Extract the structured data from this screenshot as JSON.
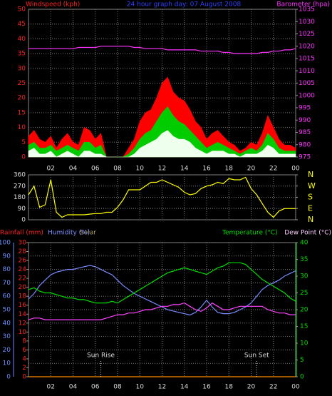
{
  "chart_data": [
    {
      "type": "line",
      "title": "24 hour graph day: 07 August 2008",
      "ylabel": "Windspeed (kph)",
      "y2label": "Barometer (hpa)",
      "x": [
        0,
        0.5,
        1,
        1.5,
        2,
        2.5,
        3,
        3.5,
        4,
        4.5,
        5,
        5.5,
        6,
        6.5,
        7,
        7.5,
        8,
        8.5,
        9,
        9.5,
        10,
        10.5,
        11,
        11.5,
        12,
        12.5,
        13,
        13.5,
        14,
        14.5,
        15,
        15.5,
        16,
        16.5,
        17,
        17.5,
        18,
        18.5,
        19,
        19.5,
        20,
        20.5,
        21,
        21.5,
        22,
        22.5,
        23,
        23.5,
        24
      ],
      "xlim": [
        0,
        24
      ],
      "xticks": [
        {
          "value": 2,
          "label": "02"
        },
        {
          "value": 4,
          "label": "04"
        },
        {
          "value": 6,
          "label": "06"
        },
        {
          "value": 8,
          "label": "08"
        },
        10,
        12,
        14,
        16,
        18,
        20,
        22,
        {
          "value": 24,
          "label": "00"
        }
      ],
      "ylim": [
        0,
        50
      ],
      "yticks": [
        0,
        5,
        10,
        15,
        20,
        25,
        30,
        35,
        40,
        45,
        50
      ],
      "ycolor": "#ff2020",
      "y2lim": [
        975,
        1035
      ],
      "y2ticks": [
        975,
        980,
        985,
        990,
        995,
        1000,
        1005,
        1010,
        1015,
        1020,
        1025,
        1030,
        1035
      ],
      "y2color": "#ff33ff",
      "grid": true,
      "series": [
        {
          "color": "#ff0000",
          "area": true,
          "values": [
            7,
            9,
            6,
            5,
            7,
            3,
            6,
            8,
            5,
            4,
            10,
            9,
            6,
            8,
            0,
            0,
            0,
            0,
            3,
            6,
            12,
            15,
            16,
            20,
            25,
            27,
            22,
            20,
            19,
            16,
            12,
            10,
            6,
            8,
            9,
            7,
            5,
            4,
            2,
            3,
            5,
            4,
            8,
            14,
            10,
            6,
            4,
            4,
            3
          ]
        },
        {
          "color": "#00cc00",
          "area": true,
          "values": [
            4,
            5,
            3,
            3,
            4,
            2,
            3,
            4,
            3,
            2,
            5,
            5,
            3,
            4,
            0,
            0,
            0,
            0,
            1,
            3,
            6,
            8,
            9,
            12,
            15,
            17,
            14,
            12,
            11,
            9,
            7,
            5,
            3,
            4,
            5,
            4,
            3,
            2,
            1,
            2,
            3,
            2,
            4,
            8,
            6,
            3,
            2,
            2,
            2
          ]
        },
        {
          "color": "#eeffee",
          "area": true,
          "values": [
            2,
            3,
            1,
            1,
            2,
            0,
            1,
            2,
            1,
            0,
            2,
            2,
            1,
            1,
            0,
            0,
            0,
            0,
            0,
            1,
            3,
            4,
            5,
            6,
            8,
            9,
            7,
            6,
            6,
            5,
            3,
            2,
            1,
            2,
            2,
            2,
            1,
            1,
            0,
            1,
            1,
            1,
            2,
            4,
            3,
            1,
            1,
            1,
            1
          ]
        },
        {
          "color": "#ff33ff",
          "axis": "y2",
          "values": [
            1019,
            1019,
            1019,
            1019,
            1019,
            1019,
            1019,
            1019,
            1019,
            1019.5,
            1019.5,
            1019.5,
            1019.5,
            1020,
            1020,
            1020,
            1020,
            1020,
            1020,
            1019.5,
            1019.5,
            1019,
            1019,
            1019,
            1019,
            1018.5,
            1018.5,
            1018.5,
            1018.5,
            1018.5,
            1018.5,
            1018,
            1018,
            1018,
            1018,
            1017.5,
            1017.5,
            1017,
            1017,
            1017,
            1017,
            1017,
            1017.5,
            1017.5,
            1018,
            1018,
            1018.5,
            1018.5,
            1019
          ]
        }
      ]
    },
    {
      "type": "line",
      "x": [
        0,
        0.5,
        1,
        1.5,
        2,
        2.5,
        3,
        3.5,
        4,
        4.5,
        5,
        5.5,
        6,
        6.5,
        7,
        7.5,
        8,
        8.5,
        9,
        9.5,
        10,
        10.5,
        11,
        11.5,
        12,
        12.5,
        13,
        13.5,
        14,
        14.5,
        15,
        15.5,
        16,
        16.5,
        17,
        17.5,
        18,
        18.5,
        19,
        19.5,
        20,
        20.5,
        21,
        21.5,
        22,
        22.5,
        23,
        23.5,
        24
      ],
      "xlim": [
        0,
        24
      ],
      "xticks": [
        {
          "value": 2,
          "label": "02"
        },
        {
          "value": 4,
          "label": "04"
        },
        {
          "value": 6,
          "label": "06"
        },
        {
          "value": 8,
          "label": "08"
        },
        10,
        12,
        14,
        16,
        18,
        20,
        22,
        {
          "value": 24,
          "label": "00"
        }
      ],
      "ylim": [
        0,
        360
      ],
      "yticks": [
        0,
        90,
        180,
        270,
        360
      ],
      "ycolor": "#dddddd",
      "y2lim": [
        0,
        360
      ],
      "y2ticks": [
        {
          "value": 360,
          "label": "N"
        },
        {
          "value": 270,
          "label": "W"
        },
        {
          "value": 180,
          "label": "S"
        },
        {
          "value": 90,
          "label": "E"
        },
        {
          "value": 0,
          "label": "N"
        }
      ],
      "y2color": "#ffff00",
      "grid": true,
      "series": [
        {
          "color": "#ffff00",
          "values": [
            200,
            270,
            100,
            120,
            320,
            60,
            20,
            40,
            40,
            40,
            40,
            45,
            50,
            50,
            60,
            60,
            100,
            160,
            240,
            240,
            240,
            270,
            300,
            300,
            320,
            300,
            280,
            260,
            220,
            200,
            210,
            250,
            270,
            280,
            300,
            290,
            330,
            320,
            320,
            340,
            250,
            200,
            130,
            60,
            20,
            70,
            90,
            90,
            90
          ]
        }
      ]
    },
    {
      "type": "line",
      "x": [
        0,
        0.5,
        1,
        1.5,
        2,
        2.5,
        3,
        3.5,
        4,
        4.5,
        5,
        5.5,
        6,
        6.5,
        7,
        7.5,
        8,
        8.5,
        9,
        9.5,
        10,
        10.5,
        11,
        11.5,
        12,
        12.5,
        13,
        13.5,
        14,
        14.5,
        15,
        15.5,
        16,
        16.5,
        17,
        17.5,
        18,
        18.5,
        19,
        19.5,
        20,
        20.5,
        21,
        21.5,
        22,
        22.5,
        23,
        23.5,
        24
      ],
      "xlim": [
        0,
        24
      ],
      "xticks": [
        {
          "value": 2,
          "label": "02"
        },
        {
          "value": 4,
          "label": "04"
        },
        {
          "value": 6,
          "label": "06"
        },
        {
          "value": 8,
          "label": "08"
        },
        10,
        12,
        14,
        16,
        18,
        20,
        22,
        {
          "value": 24,
          "label": "00"
        }
      ],
      "ylim": [
        0,
        100
      ],
      "yticks": [
        0,
        10,
        20,
        30,
        40,
        50,
        60,
        70,
        80,
        90,
        100
      ],
      "ycolor": "#6a8cff",
      "y3lim": [
        0,
        30
      ],
      "y3ticks": [
        0,
        2,
        4,
        6,
        8,
        10,
        12,
        14,
        16,
        18,
        20,
        22,
        24,
        26,
        28,
        30
      ],
      "y3color": "#ff2020",
      "y2lim": [
        0,
        40
      ],
      "y2ticks": [
        0,
        5,
        10,
        15,
        20,
        25,
        30,
        35,
        40
      ],
      "y2color": "#00dd00",
      "grid": true,
      "solar_label": "Solar",
      "annotations": [
        {
          "text": "Sun Rise",
          "x": 6.5
        },
        {
          "text": "Sun Set",
          "x": 20.5
        }
      ],
      "series": [
        {
          "name": "Rainfall (mm)",
          "color": "#ff8800",
          "axis": "y3",
          "values": [
            0,
            0,
            0,
            0,
            0,
            0,
            0,
            0,
            0,
            0,
            0,
            0,
            0,
            0,
            0,
            0,
            0,
            0,
            0,
            0,
            0,
            0,
            0,
            0,
            0,
            0,
            0,
            0,
            0,
            0,
            0,
            0,
            0,
            0,
            0,
            0,
            0,
            0,
            0,
            0,
            0,
            0,
            0,
            0,
            0,
            0,
            0,
            0,
            0
          ]
        },
        {
          "name": "Humidity (%)",
          "color": "#7a8cff",
          "values": [
            58,
            62,
            68,
            72,
            76,
            78,
            79,
            80,
            80,
            81,
            82,
            83,
            82,
            80,
            78,
            76,
            72,
            68,
            65,
            62,
            60,
            58,
            56,
            54,
            52,
            50,
            49,
            48,
            47,
            46,
            48,
            52,
            57,
            52,
            48,
            47,
            47,
            48,
            50,
            52,
            55,
            60,
            65,
            68,
            70,
            72,
            75,
            77,
            79
          ]
        },
        {
          "name": "Temperature (°C)",
          "color": "#00dd00",
          "axis": "y2",
          "values": [
            26,
            26.5,
            25.5,
            25,
            25,
            24.5,
            24,
            23.5,
            23.5,
            23,
            23,
            22.5,
            22,
            22,
            22,
            22.5,
            22,
            23,
            24,
            25,
            26,
            27,
            28,
            29,
            30,
            31,
            31.5,
            32,
            32.5,
            32,
            31.5,
            31,
            30.5,
            31.5,
            32.5,
            33,
            34,
            34,
            34,
            33.5,
            32,
            30.5,
            29,
            28,
            27,
            26,
            25,
            23.5,
            22.5
          ]
        },
        {
          "name": "Dew Point (°C)",
          "color": "#ff44ff",
          "axis": "y2",
          "values": [
            17,
            17.5,
            17.5,
            17,
            17,
            17,
            17,
            17,
            17,
            17,
            17,
            17,
            17,
            17,
            17.5,
            18,
            18.5,
            18.5,
            19,
            19,
            19.5,
            20,
            20,
            20.5,
            21,
            21,
            21.5,
            21.5,
            22,
            21,
            20,
            19.5,
            20.5,
            22,
            21,
            20,
            20,
            20.5,
            21,
            21,
            21,
            21,
            21,
            20,
            19.5,
            19,
            19,
            18.5,
            18.5
          ]
        }
      ]
    }
  ]
}
